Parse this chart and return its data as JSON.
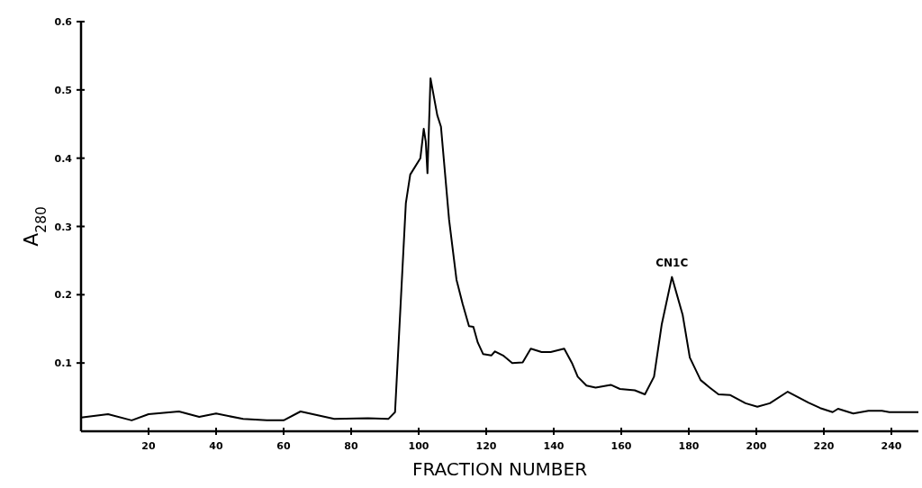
{
  "chart_data": {
    "type": "line",
    "xlabel": "FRACTION NUMBER",
    "ylabel": "A$_{280}$",
    "xlim": [
      0,
      248
    ],
    "ylim": [
      0,
      0.6
    ],
    "xticks": [
      20,
      40,
      60,
      80,
      100,
      120,
      140,
      160,
      180,
      200,
      220,
      240
    ],
    "yticks": [
      0.1,
      0.2,
      0.3,
      0.4,
      0.5,
      0.6
    ],
    "grid": false,
    "marker": "none",
    "line_style": "solid",
    "annotations": [
      {
        "text": "CN1C",
        "x": 175,
        "y": 0.226
      }
    ],
    "series": [
      {
        "color": "#000000",
        "x": [
          0,
          8,
          15,
          20,
          29,
          35,
          40,
          48,
          55,
          60,
          65,
          75,
          85,
          91,
          93,
          96.2,
          97.5,
          100.5,
          101.5,
          102.1,
          102.6,
          103.5,
          105.5,
          106.6,
          109,
          111.2,
          113,
          114.9,
          116.2,
          117.5,
          119.1,
          121.5,
          122.6,
          125,
          127.7,
          130.8,
          133.2,
          136.4,
          139.1,
          143.1,
          145.4,
          147.1,
          149.7,
          152.4,
          156.9,
          159.6,
          164,
          167,
          169.7,
          172,
          175,
          178.2,
          180.3,
          183.5,
          186.2,
          188.8,
          192.3,
          196.8,
          200.3,
          204,
          209.3,
          215.4,
          218.9,
          222.6,
          224.2,
          228.7,
          233.2,
          237.2,
          239.4,
          248
        ],
        "values": [
          0.02,
          0.025,
          0.016,
          0.025,
          0.029,
          0.021,
          0.026,
          0.018,
          0.016,
          0.016,
          0.029,
          0.018,
          0.019,
          0.018,
          0.028,
          0.334,
          0.376,
          0.4,
          0.443,
          0.424,
          0.378,
          0.517,
          0.463,
          0.446,
          0.31,
          0.222,
          0.187,
          0.154,
          0.153,
          0.13,
          0.113,
          0.111,
          0.117,
          0.111,
          0.1,
          0.101,
          0.121,
          0.116,
          0.116,
          0.121,
          0.1,
          0.08,
          0.067,
          0.064,
          0.068,
          0.062,
          0.06,
          0.054,
          0.08,
          0.157,
          0.226,
          0.17,
          0.108,
          0.075,
          0.064,
          0.054,
          0.053,
          0.041,
          0.036,
          0.041,
          0.058,
          0.042,
          0.034,
          0.028,
          0.033,
          0.026,
          0.03,
          0.03,
          0.028,
          0.028
        ]
      }
    ]
  }
}
